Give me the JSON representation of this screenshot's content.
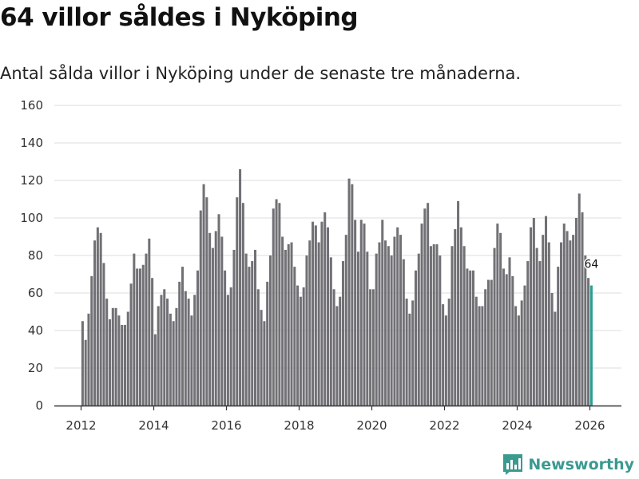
{
  "title": "64 villor såldes i Nyköping",
  "subtitle": "Antal sålda villor i Nyköping under de senaste tre månaderna.",
  "brand": {
    "name": "Newsworthy",
    "icon": "newsworthy-logo-icon"
  },
  "colors": {
    "bar": "#717075",
    "highlight": "#2a9d8f",
    "grid": "#dddddd",
    "axis": "#333333",
    "brand": "#3a9a90"
  },
  "chart_data": {
    "type": "bar",
    "title": "64 villor såldes i Nyköping",
    "subtitle": "Antal sålda villor i Nyköping under de senaste tre månaderna.",
    "xlabel": "",
    "ylabel": "",
    "ylim": [
      0,
      160
    ],
    "yticks": [
      0,
      20,
      40,
      60,
      80,
      100,
      120,
      140,
      160
    ],
    "xticks": [
      "2012",
      "2014",
      "2016",
      "2018",
      "2020",
      "2022",
      "2024",
      "2026"
    ],
    "grid": true,
    "start": "2012-01",
    "interval": "month",
    "highlight_label": "64",
    "values": [
      45,
      35,
      49,
      69,
      88,
      95,
      92,
      76,
      57,
      46,
      52,
      52,
      48,
      43,
      43,
      50,
      65,
      81,
      73,
      73,
      75,
      81,
      89,
      68,
      38,
      53,
      59,
      62,
      57,
      49,
      45,
      52,
      66,
      74,
      61,
      57,
      48,
      59,
      72,
      104,
      118,
      111,
      92,
      84,
      93,
      102,
      90,
      72,
      59,
      63,
      83,
      111,
      126,
      108,
      81,
      74,
      77,
      83,
      62,
      51,
      45,
      66,
      80,
      105,
      110,
      108,
      90,
      83,
      86,
      87,
      74,
      64,
      58,
      63,
      80,
      88,
      98,
      96,
      87,
      98,
      103,
      95,
      79,
      62,
      53,
      58,
      77,
      91,
      121,
      118,
      99,
      82,
      99,
      97,
      82,
      62,
      62,
      81,
      87,
      99,
      88,
      85,
      80,
      90,
      95,
      91,
      78,
      57,
      49,
      56,
      72,
      81,
      97,
      105,
      108,
      85,
      86,
      86,
      80,
      54,
      48,
      57,
      85,
      94,
      109,
      95,
      85,
      73,
      72,
      72,
      58,
      53,
      53,
      62,
      67,
      67,
      84,
      97,
      92,
      73,
      70,
      79,
      69,
      53,
      48,
      56,
      64,
      77,
      95,
      100,
      84,
      77,
      91,
      101,
      87,
      60,
      50,
      74,
      87,
      97,
      93,
      88,
      91,
      100,
      113,
      103,
      80,
      68,
      64
    ]
  }
}
